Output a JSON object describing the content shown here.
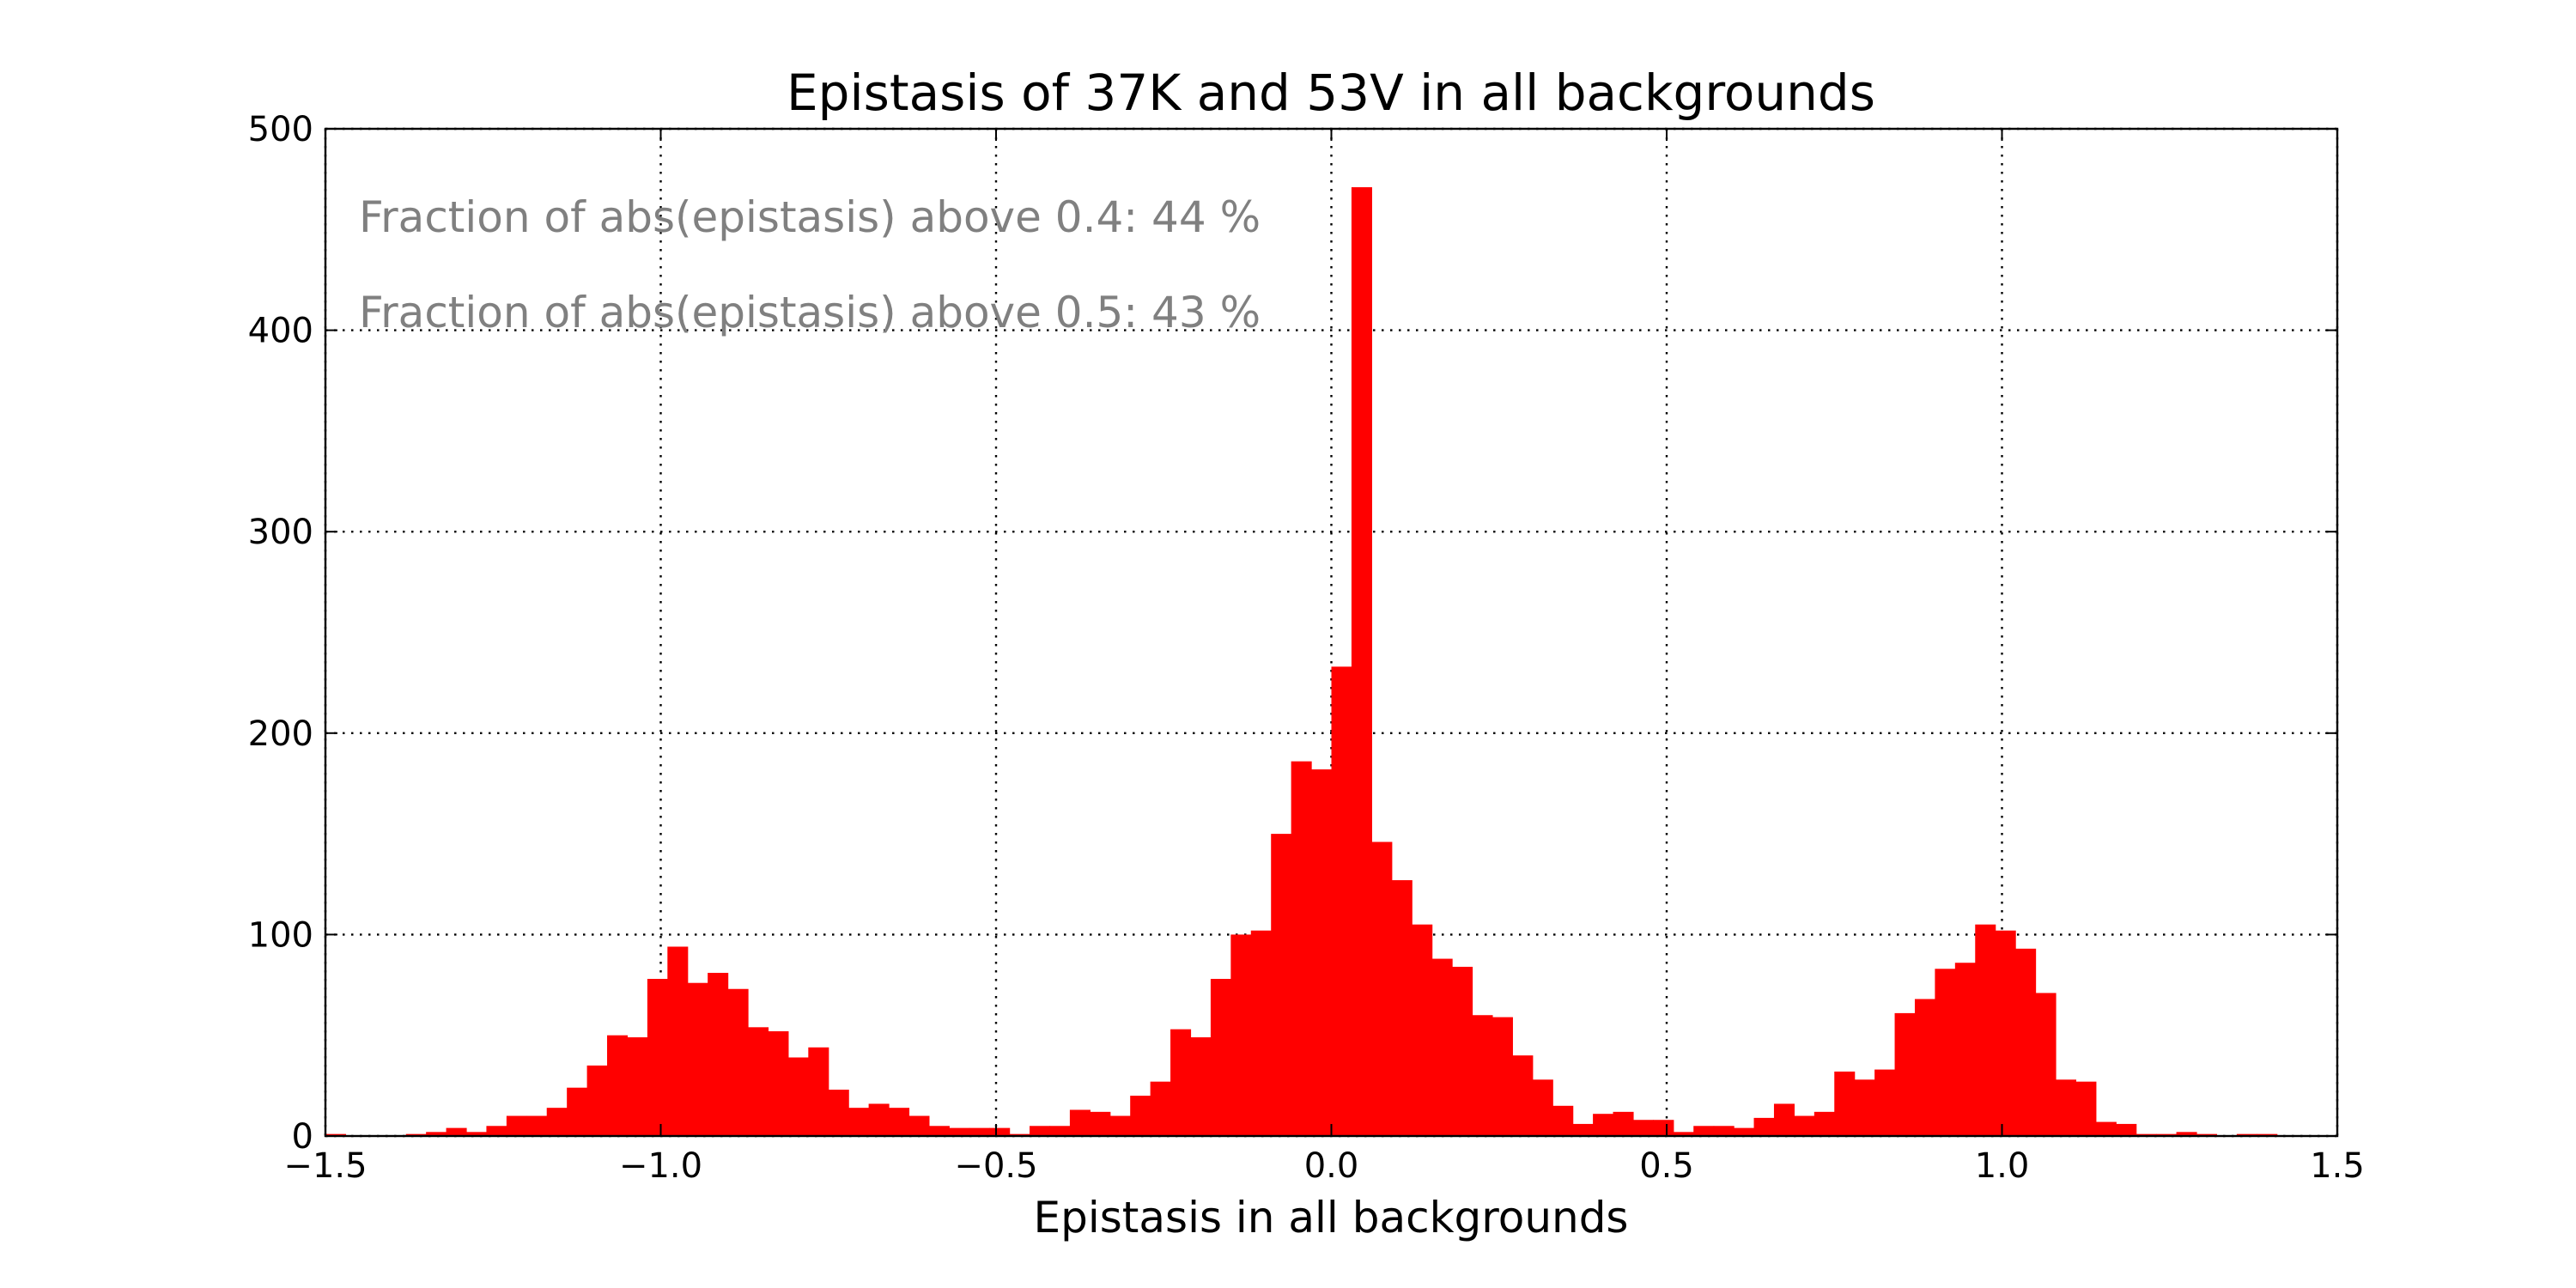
{
  "chart_data": {
    "type": "bar",
    "title": "Epistasis of 37K and 53V in all backgrounds",
    "xlabel": "Epistasis in all backgrounds",
    "ylabel": "",
    "xlim": [
      -1.5,
      1.5
    ],
    "ylim": [
      0,
      500
    ],
    "xticks": [
      -1.5,
      -1.0,
      -0.5,
      0.0,
      0.5,
      1.0,
      1.5
    ],
    "xtick_labels": [
      "−1.5",
      "−1.0",
      "−0.5",
      "0.0",
      "0.5",
      "1.0",
      "1.5"
    ],
    "yticks": [
      0,
      100,
      200,
      300,
      400,
      500
    ],
    "ytick_labels": [
      "0",
      "100",
      "200",
      "300",
      "400",
      "500"
    ],
    "grid": true,
    "bar_color": "#ff0000",
    "annotation_color": "#808080",
    "annotations": [
      "Fraction of abs(epistasis) above 0.4: 44 %",
      "Fraction of abs(epistasis) above 0.5: 43 %"
    ],
    "bin_start": -1.5,
    "bin_width": 0.03,
    "values": [
      1,
      0,
      0,
      0,
      1,
      2,
      4,
      2,
      5,
      10,
      10,
      14,
      24,
      35,
      50,
      49,
      78,
      94,
      76,
      81,
      73,
      54,
      52,
      39,
      44,
      23,
      14,
      16,
      14,
      10,
      5,
      4,
      4,
      4,
      1,
      5,
      5,
      13,
      12,
      10,
      20,
      27,
      53,
      49,
      78,
      100,
      102,
      150,
      186,
      182,
      233,
      471,
      146,
      127,
      105,
      88,
      84,
      60,
      59,
      40,
      28,
      15,
      6,
      11,
      12,
      8,
      8,
      2,
      5,
      5,
      4,
      9,
      16,
      10,
      12,
      32,
      28,
      33,
      61,
      68,
      83,
      86,
      105,
      102,
      93,
      71,
      28,
      27,
      7,
      6,
      1,
      1,
      2,
      1,
      0,
      1,
      1,
      0,
      0,
      0
    ]
  }
}
